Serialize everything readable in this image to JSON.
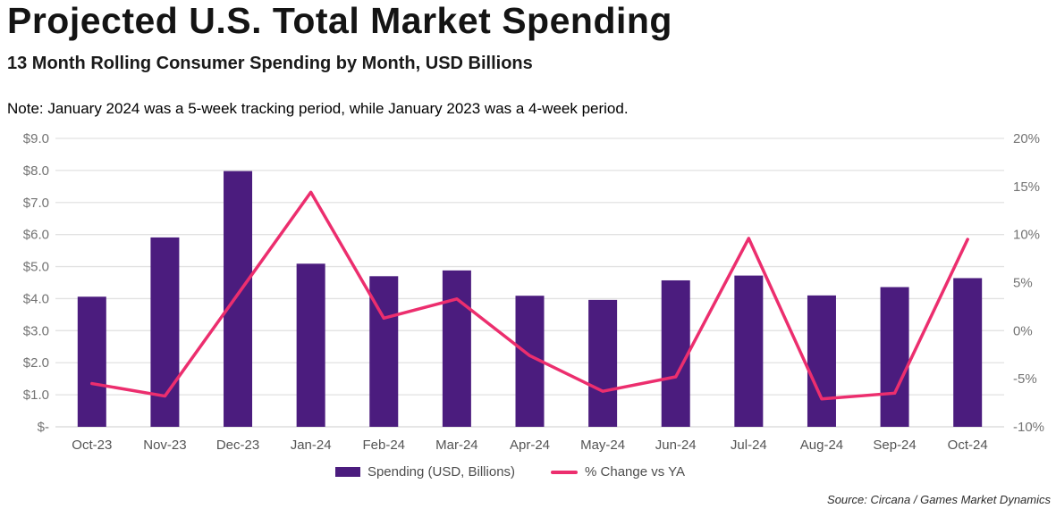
{
  "header": {
    "title": "Projected U.S. Total Market Spending",
    "subtitle": "13 Month Rolling Consumer Spending by Month, USD Billions",
    "note": "Note: January 2024 was a 5-week tracking period, while January 2023 was a 4-week period."
  },
  "source": "Source: Circana / Games Market Dynamics",
  "colors": {
    "bar": "#4B1C7E",
    "line": "#EC2E6E",
    "grid": "#E2E2E2",
    "baseline": "#D6D6D6",
    "axis_text": "#737373",
    "x_text": "#545454"
  },
  "legend": [
    {
      "label": "Spending (USD, Billions)",
      "swatch": "bar",
      "color": "#4B1C7E"
    },
    {
      "label": "% Change vs YA",
      "swatch": "line",
      "color": "#EC2E6E"
    }
  ],
  "chart_data": {
    "type": "bar",
    "title": "Projected U.S. Total Market Spending",
    "subtitle": "13 Month Rolling Consumer Spending by Month, USD Billions",
    "categories": [
      "Oct-23",
      "Nov-23",
      "Dec-23",
      "Jan-24",
      "Feb-24",
      "Mar-24",
      "Apr-24",
      "May-24",
      "Jun-24",
      "Jul-24",
      "Aug-24",
      "Sep-24",
      "Oct-24"
    ],
    "series": [
      {
        "name": "Spending (USD, Billions)",
        "type": "bar",
        "axis": "left",
        "color": "#4B1C7E",
        "values": [
          4.06,
          5.91,
          7.98,
          5.09,
          4.7,
          4.88,
          4.09,
          3.96,
          4.57,
          4.72,
          4.1,
          4.36,
          4.64
        ]
      },
      {
        "name": "% Change vs YA",
        "type": "line",
        "axis": "right",
        "color": "#EC2E6E",
        "values": [
          -5.5,
          -6.8,
          3.8,
          14.4,
          1.3,
          3.3,
          -2.6,
          -6.3,
          -4.8,
          9.6,
          -7.1,
          -6.5,
          9.5
        ]
      }
    ],
    "left_axis": {
      "min": 0,
      "max": 9,
      "ticks": [
        "$9.0",
        "$8.0",
        "$7.0",
        "$6.0",
        "$5.0",
        "$4.0",
        "$3.0",
        "$2.0",
        "$1.0",
        "$-"
      ],
      "tick_values": [
        9,
        8,
        7,
        6,
        5,
        4,
        3,
        2,
        1,
        0
      ]
    },
    "right_axis": {
      "min": -10,
      "max": 20,
      "ticks": [
        "20%",
        "15%",
        "10%",
        "5%",
        "0%",
        "-5%",
        "-10%"
      ],
      "tick_values": [
        20,
        15,
        10,
        5,
        0,
        -5,
        -10
      ]
    },
    "grid": true,
    "legend_position": "bottom"
  }
}
